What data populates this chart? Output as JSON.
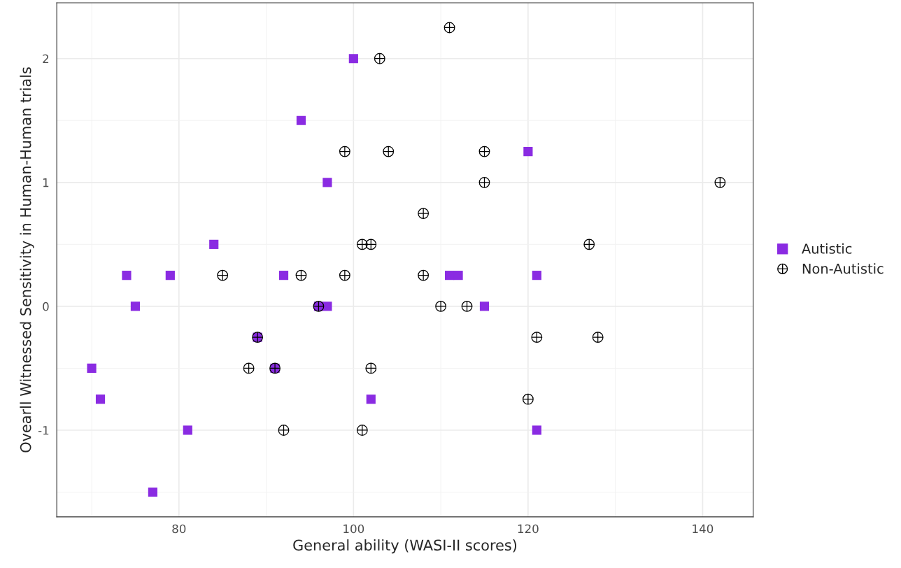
{
  "chart_data": {
    "type": "scatter",
    "xlabel": "General ability (WASI-II scores)",
    "ylabel": "Ovearll Witnessed Sensitivity in Human-Human trials",
    "xlim": [
      66,
      145.8
    ],
    "ylim": [
      -1.7,
      2.45
    ],
    "xticks": [
      80,
      100,
      120,
      140
    ],
    "yticks": [
      -1,
      0,
      1,
      2
    ],
    "grid": true,
    "legend": "right",
    "series": [
      {
        "name": "Autistic",
        "color": "#8a2be2",
        "marker": "square",
        "x": [
          100,
          94,
          120,
          97,
          84,
          74,
          79,
          92,
          111,
          112,
          121,
          75,
          97,
          96,
          115,
          89,
          91,
          70,
          71,
          102,
          81,
          121,
          77
        ],
        "values": [
          2,
          1.5,
          1.25,
          1,
          0.5,
          0.25,
          0.25,
          0.25,
          0.25,
          0.25,
          0.25,
          0,
          0,
          0,
          0,
          -0.25,
          -0.5,
          -0.5,
          -0.75,
          -0.75,
          -1,
          -1,
          -1.5
        ]
      },
      {
        "name": "Non-Autistic",
        "color": "#000000",
        "marker": "cross",
        "x": [
          111,
          103,
          99,
          104,
          115,
          115,
          142,
          108,
          101,
          102,
          127,
          85,
          94,
          99,
          108,
          96,
          110,
          113,
          89,
          121,
          128,
          88,
          91,
          102,
          120,
          92,
          101
        ],
        "values": [
          2.25,
          2,
          1.25,
          1.25,
          1.25,
          1,
          1,
          0.75,
          0.5,
          0.5,
          0.5,
          0.25,
          0.25,
          0.25,
          0.25,
          0,
          0,
          0,
          -0.25,
          -0.25,
          -0.25,
          -0.5,
          -0.5,
          -0.5,
          -0.75,
          -1,
          -1
        ]
      }
    ]
  }
}
